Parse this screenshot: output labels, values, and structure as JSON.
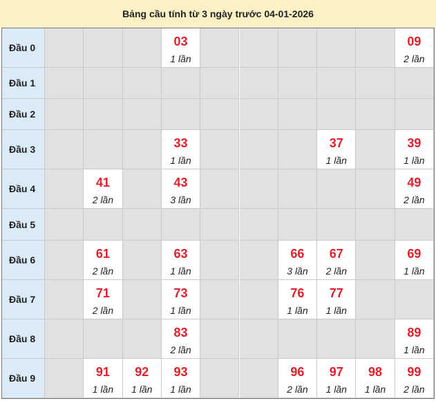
{
  "title": "Bảng cầu tính từ 3 ngày trước 04-01-2026",
  "table": {
    "rows": [
      {
        "label": "Đầu 0",
        "cells": [
          null,
          null,
          null,
          {
            "number": "03",
            "count": "1 lần"
          },
          null,
          null,
          null,
          null,
          null,
          {
            "number": "09",
            "count": "2 lần"
          }
        ]
      },
      {
        "label": "Đầu 1",
        "cells": [
          null,
          null,
          null,
          null,
          null,
          null,
          null,
          null,
          null,
          null
        ]
      },
      {
        "label": "Đầu 2",
        "cells": [
          null,
          null,
          null,
          null,
          null,
          null,
          null,
          null,
          null,
          null
        ]
      },
      {
        "label": "Đầu 3",
        "cells": [
          null,
          null,
          null,
          {
            "number": "33",
            "count": "1 lần"
          },
          null,
          null,
          null,
          {
            "number": "37",
            "count": "1 lần"
          },
          null,
          {
            "number": "39",
            "count": "1 lần"
          }
        ]
      },
      {
        "label": "Đầu 4",
        "cells": [
          null,
          {
            "number": "41",
            "count": "2 lần"
          },
          null,
          {
            "number": "43",
            "count": "3 lần"
          },
          null,
          null,
          null,
          null,
          null,
          {
            "number": "49",
            "count": "2 lần"
          }
        ]
      },
      {
        "label": "Đầu 5",
        "cells": [
          null,
          null,
          null,
          null,
          null,
          null,
          null,
          null,
          null,
          null
        ]
      },
      {
        "label": "Đầu 6",
        "cells": [
          null,
          {
            "number": "61",
            "count": "2 lần"
          },
          null,
          {
            "number": "63",
            "count": "1 lần"
          },
          null,
          null,
          {
            "number": "66",
            "count": "3 lần"
          },
          {
            "number": "67",
            "count": "2 lần"
          },
          null,
          {
            "number": "69",
            "count": "1 lần"
          }
        ]
      },
      {
        "label": "Đầu 7",
        "cells": [
          null,
          {
            "number": "71",
            "count": "2 lần"
          },
          null,
          {
            "number": "73",
            "count": "1 lần"
          },
          null,
          null,
          {
            "number": "76",
            "count": "1 lần"
          },
          {
            "number": "77",
            "count": "1 lần"
          },
          null,
          null
        ]
      },
      {
        "label": "Đầu 8",
        "cells": [
          null,
          null,
          null,
          {
            "number": "83",
            "count": "2 lần"
          },
          null,
          null,
          null,
          null,
          null,
          {
            "number": "89",
            "count": "1 lần"
          }
        ]
      },
      {
        "label": "Đầu 9",
        "cells": [
          null,
          {
            "number": "91",
            "count": "1 lần"
          },
          {
            "number": "92",
            "count": "1 lần"
          },
          {
            "number": "93",
            "count": "1 lần"
          },
          null,
          null,
          {
            "number": "96",
            "count": "2 lần"
          },
          {
            "number": "97",
            "count": "1 lần"
          },
          {
            "number": "98",
            "count": "1 lần"
          },
          {
            "number": "99",
            "count": "2 lần"
          }
        ]
      }
    ]
  }
}
